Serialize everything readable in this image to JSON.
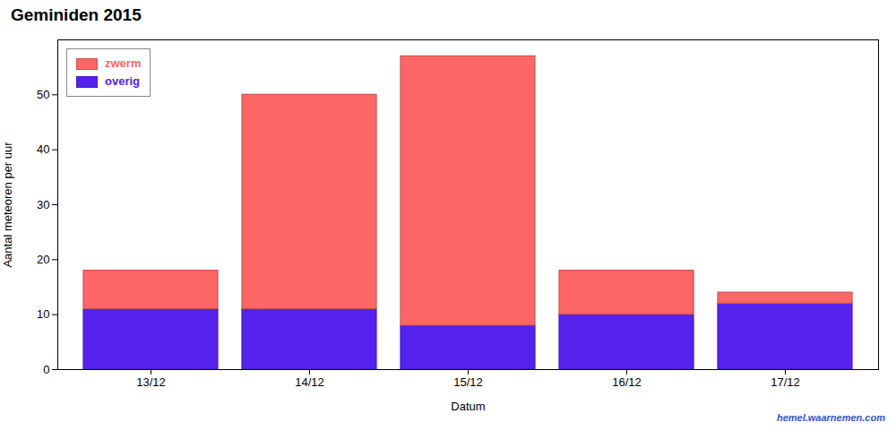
{
  "chart_data": {
    "type": "bar",
    "stacked": true,
    "title": "Geminiden 2015",
    "x_label": "Datum",
    "y_label": "Aantal meteoren per uur",
    "categories": [
      "13/12",
      "14/12",
      "15/12",
      "16/12",
      "17/12"
    ],
    "series": [
      {
        "name": "overig",
        "color": "#5522ee",
        "values": [
          11,
          11,
          8,
          10,
          12
        ]
      },
      {
        "name": "zwerm",
        "color": "#ff6666",
        "values": [
          7,
          39,
          49,
          8,
          2
        ]
      }
    ],
    "ylim": [
      0,
      60
    ],
    "yticks": [
      0,
      10,
      20,
      30,
      40,
      50
    ],
    "grid": false,
    "legend": "upper left",
    "annotations": [
      "hemel.waarnemen.com"
    ]
  }
}
